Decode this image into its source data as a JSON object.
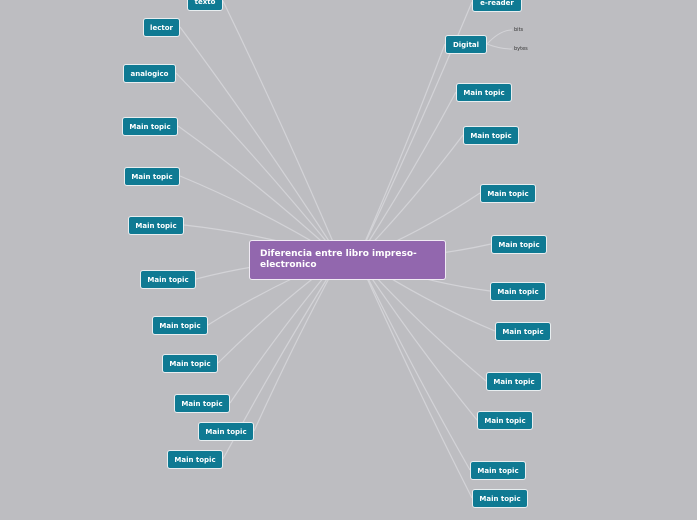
{
  "central_topic": "Diferencia entre libro impreso-electronico",
  "left_topics": [
    "texto",
    "lector",
    "analogico",
    "Main topic",
    "Main topic",
    "Main topic",
    "Main topic",
    "Main topic",
    "Main topic",
    "Main topic",
    "Main topic",
    "Main topic"
  ],
  "right_topics": [
    "e-reader",
    "Digital",
    "Main topic",
    "Main topic",
    "Main topic",
    "Main topic",
    "Main topic",
    "Main topic",
    "Main topic",
    "Main topic",
    "Main topic",
    "Main topic"
  ],
  "digital_subtopics": [
    "bits",
    "bytes"
  ],
  "colors": {
    "background": "#bdbdc1",
    "topic": "#0f7a93",
    "central": "#9267ae"
  }
}
